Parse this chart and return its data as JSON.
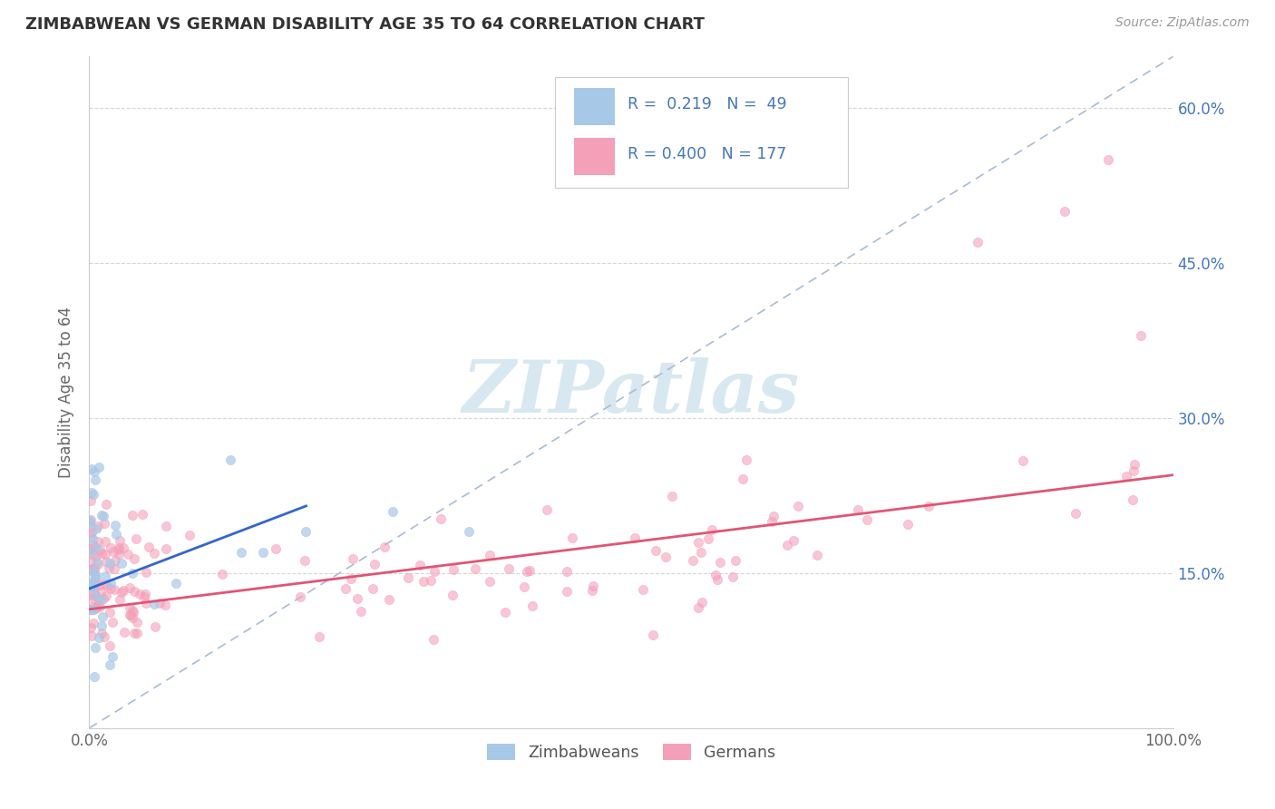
{
  "title": "ZIMBABWEAN VS GERMAN DISABILITY AGE 35 TO 64 CORRELATION CHART",
  "source_text": "Source: ZipAtlas.com",
  "ylabel": "Disability Age 35 to 64",
  "r_zimbabwean": 0.219,
  "n_zimbabwean": 49,
  "r_german": 0.4,
  "n_german": 177,
  "zim_color": "#A8C8E8",
  "ger_color": "#F4A0B8",
  "zim_line_color": "#3366CC",
  "ger_line_color": "#E05575",
  "diag_color": "#AABBD4",
  "background_color": "#FFFFFF",
  "watermark_color": "#D8E8F0",
  "xlim": [
    0.0,
    1.0
  ],
  "ylim": [
    0.0,
    0.65
  ],
  "ytick_values": [
    0.15,
    0.3,
    0.45,
    0.6
  ],
  "legend_zim_color": "#A8C8E8",
  "legend_ger_color": "#F4A0B8",
  "legend_text_color": "#4477BB"
}
